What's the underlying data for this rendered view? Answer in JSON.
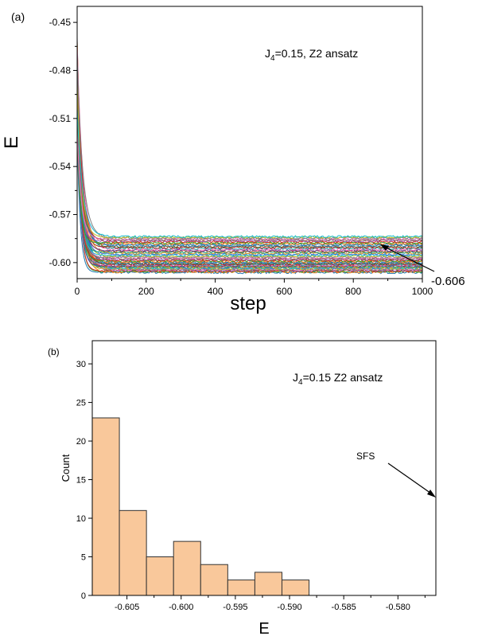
{
  "chart_data": [
    {
      "type": "line",
      "panel_label": "(a)",
      "annotation_main": "J",
      "annotation_sub": "4",
      "annotation_rest": "=0.15, Z2 ansatz",
      "arrow_label": "-0.606",
      "xlabel": "step",
      "ylabel": "E",
      "xlim": [
        0,
        1000
      ],
      "ylim": [
        -0.61,
        -0.44
      ],
      "xticks": [
        "0",
        "200",
        "400",
        "600",
        "800",
        "1000"
      ],
      "yticks": [
        "-0.45",
        "-0.48",
        "-0.51",
        "-0.54",
        "-0.57",
        "-0.60"
      ],
      "series_count": 50,
      "start_value_range": [
        -0.52,
        -0.458
      ],
      "final_values": [
        -0.6062,
        -0.6058,
        -0.6055,
        -0.6052,
        -0.6049,
        -0.6046,
        -0.6043,
        -0.604,
        -0.6037,
        -0.6034,
        -0.6031,
        -0.6028,
        -0.6025,
        -0.6022,
        -0.6019,
        -0.6016,
        -0.6013,
        -0.601,
        -0.6006,
        -0.6002,
        -0.5998,
        -0.5994,
        -0.599,
        -0.5985,
        -0.598,
        -0.5975,
        -0.597,
        -0.5965,
        -0.596,
        -0.5954,
        -0.5948,
        -0.5942,
        -0.5936,
        -0.593,
        -0.5924,
        -0.5918,
        -0.5912,
        -0.5906,
        -0.59,
        -0.5894,
        -0.5888,
        -0.5882,
        -0.5876,
        -0.587,
        -0.5864,
        -0.5858,
        -0.5852,
        -0.5846,
        -0.5842,
        -0.5838
      ]
    },
    {
      "type": "bar",
      "panel_label": "(b)",
      "annotation_main": "J",
      "annotation_sub": "4",
      "annotation_rest": "=0.15 Z2 ansatz",
      "arrow_label": "SFS",
      "xlabel": "E",
      "ylabel": "Count",
      "xlim": [
        -0.6082,
        -0.5765
      ],
      "ylim": [
        0,
        33
      ],
      "xticks": [
        "-0.605",
        "-0.600",
        "-0.595",
        "-0.590",
        "-0.585",
        "-0.580"
      ],
      "yticks": [
        "0",
        "5",
        "10",
        "15",
        "20",
        "25",
        "30"
      ],
      "bin_edges": [
        -0.6082,
        -0.6057,
        -0.6032,
        -0.6007,
        -0.5982,
        -0.5957,
        -0.5932,
        -0.5907,
        -0.5882,
        -0.5857,
        -0.5832,
        -0.5807
      ],
      "values": [
        23,
        11,
        5,
        7,
        4,
        2,
        3,
        2,
        0,
        0,
        0
      ],
      "bar_color": "#f9c89b"
    }
  ]
}
